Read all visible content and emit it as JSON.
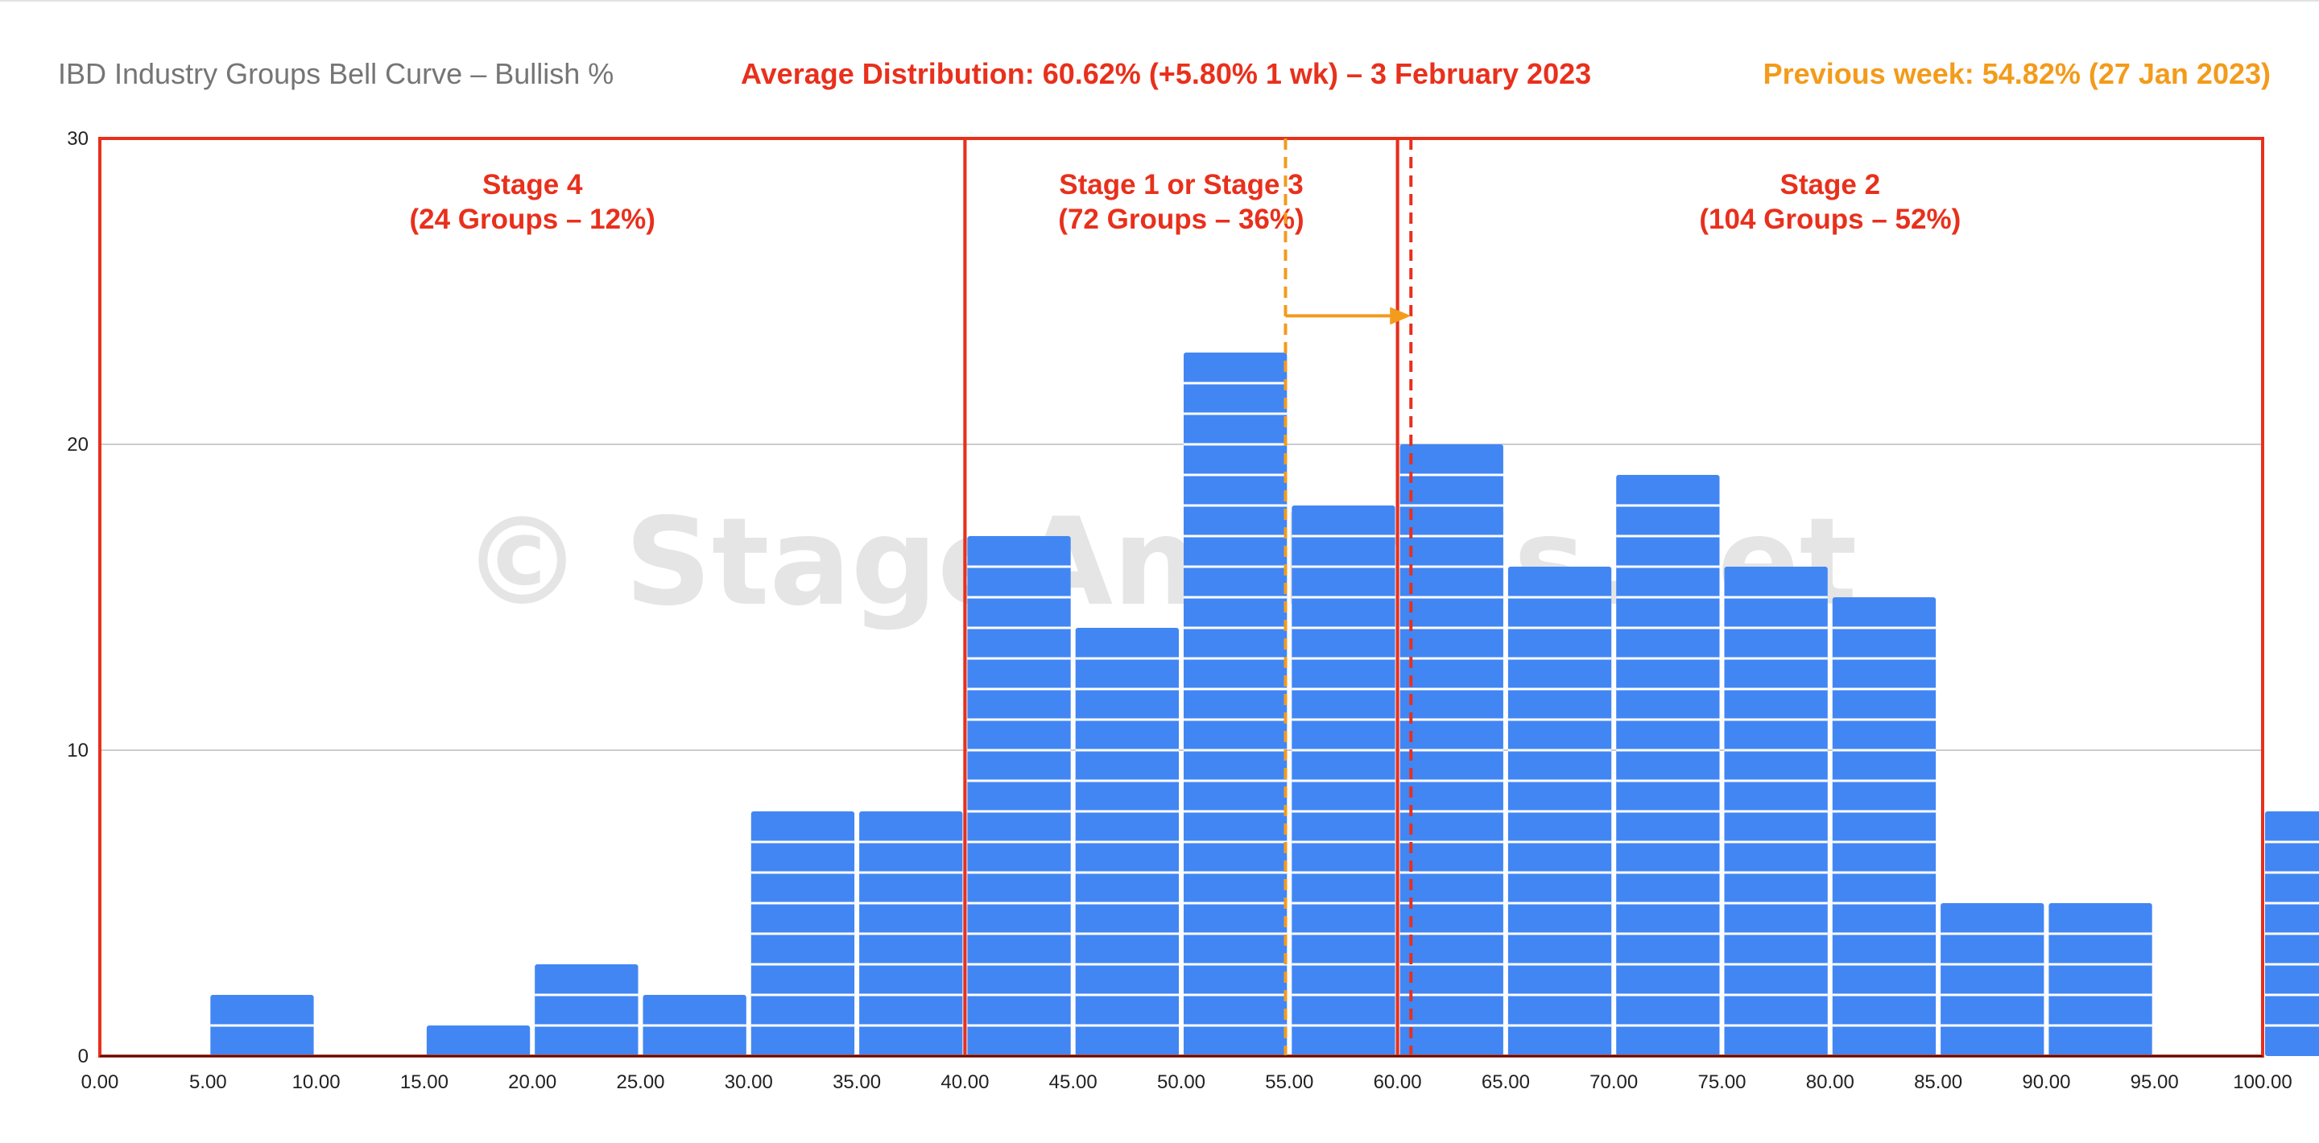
{
  "chart_data": {
    "type": "bar",
    "title": "IBD Industry Groups Bell Curve – Bullish %",
    "subtitle": "Average Distribution: 60.62% (+5.80% 1 wk) – 3 February 2023",
    "previous_week_note": "Previous week: 54.82% (27 Jan 2023)",
    "xlim": [
      0,
      100
    ],
    "ylim": [
      0,
      30
    ],
    "x_ticks": [
      "0.00",
      "5.00",
      "10.00",
      "15.00",
      "20.00",
      "25.00",
      "30.00",
      "35.00",
      "40.00",
      "45.00",
      "50.00",
      "55.00",
      "60.00",
      "65.00",
      "70.00",
      "75.00",
      "80.00",
      "85.00",
      "90.00",
      "95.00",
      "100.00"
    ],
    "y_ticks": [
      "0",
      "10",
      "20",
      "30"
    ],
    "bins": [
      {
        "from": 0,
        "to": 5,
        "count": 0
      },
      {
        "from": 5,
        "to": 10,
        "count": 2
      },
      {
        "from": 10,
        "to": 15,
        "count": 0
      },
      {
        "from": 15,
        "to": 20,
        "count": 1
      },
      {
        "from": 20,
        "to": 25,
        "count": 3
      },
      {
        "from": 25,
        "to": 30,
        "count": 2
      },
      {
        "from": 30,
        "to": 35,
        "count": 8
      },
      {
        "from": 35,
        "to": 40,
        "count": 8
      },
      {
        "from": 40,
        "to": 45,
        "count": 17
      },
      {
        "from": 45,
        "to": 50,
        "count": 14
      },
      {
        "from": 50,
        "to": 55,
        "count": 23
      },
      {
        "from": 55,
        "to": 60,
        "count": 18
      },
      {
        "from": 60,
        "to": 65,
        "count": 20
      },
      {
        "from": 65,
        "to": 70,
        "count": 16
      },
      {
        "from": 70,
        "to": 75,
        "count": 19
      },
      {
        "from": 75,
        "to": 80,
        "count": 16
      },
      {
        "from": 80,
        "to": 85,
        "count": 15
      },
      {
        "from": 85,
        "to": 90,
        "count": 5
      },
      {
        "from": 90,
        "to": 95,
        "count": 5
      },
      {
        "from": 95,
        "to": 100,
        "count": 0
      },
      {
        "from": 100,
        "to": 105,
        "count": 8
      }
    ],
    "grid": true,
    "stages": [
      {
        "from": 0,
        "to": 40,
        "line1": "Stage 4",
        "line2": "(24 Groups – 12%)"
      },
      {
        "from": 40,
        "to": 60,
        "line1": "Stage 1 or Stage 3",
        "line2": "(72 Groups – 36%)"
      },
      {
        "from": 60,
        "to": 100,
        "line1": "Stage 2",
        "line2": "(104 Groups – 52%)"
      }
    ],
    "average_current": 60.62,
    "average_previous": 54.82,
    "watermark": "© StageAnalysis.net",
    "colors": {
      "bar": "#4286f4",
      "stage_box": "#e8301c",
      "current_line": "#e8301c",
      "previous_line": "#f39b1b",
      "title": "#757575",
      "grid": "#cccccc"
    }
  }
}
